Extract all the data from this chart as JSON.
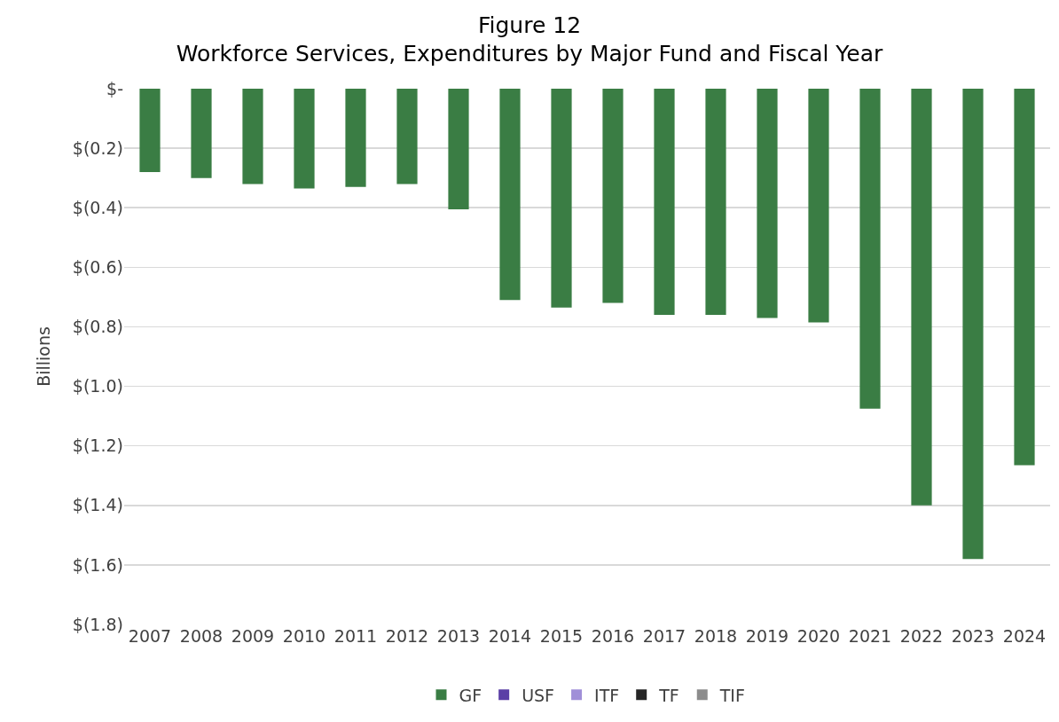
{
  "chart_data": {
    "type": "bar",
    "title": "Figure 12",
    "subtitle": "Workforce Services, Expenditures by Major Fund and Fiscal Year",
    "ylabel": "Billions",
    "categories": [
      "2007",
      "2008",
      "2009",
      "2010",
      "2011",
      "2012",
      "2013",
      "2014",
      "2015",
      "2016",
      "2017",
      "2018",
      "2019",
      "2020",
      "2021",
      "2022",
      "2023",
      "2024"
    ],
    "series": [
      {
        "name": "GF",
        "color": "#3a7d44",
        "values": [
          -0.28,
          -0.3,
          -0.32,
          -0.335,
          -0.33,
          -0.32,
          -0.405,
          -0.71,
          -0.735,
          -0.72,
          -0.76,
          -0.76,
          -0.77,
          -0.785,
          -1.075,
          -1.4,
          -1.58,
          -1.265
        ]
      },
      {
        "name": "USF",
        "color": "#5b3fa6",
        "values": [
          null,
          null,
          null,
          null,
          null,
          null,
          null,
          null,
          null,
          null,
          null,
          null,
          null,
          null,
          null,
          null,
          null,
          null
        ]
      },
      {
        "name": "ITF",
        "color": "#a08fd8",
        "values": [
          null,
          null,
          null,
          null,
          null,
          null,
          null,
          null,
          null,
          null,
          null,
          null,
          null,
          null,
          null,
          null,
          null,
          null
        ]
      },
      {
        "name": "TF",
        "color": "#262626",
        "values": [
          null,
          null,
          null,
          null,
          null,
          null,
          null,
          null,
          null,
          null,
          null,
          null,
          null,
          null,
          null,
          null,
          null,
          null
        ]
      },
      {
        "name": "TIF",
        "color": "#8c8c8c",
        "values": [
          null,
          null,
          null,
          null,
          null,
          null,
          null,
          null,
          null,
          null,
          null,
          null,
          null,
          null,
          null,
          null,
          null,
          null
        ]
      }
    ],
    "stacked": true,
    "ylim": [
      -1.8,
      0
    ],
    "yticks": [
      {
        "value": 0,
        "label": "$-"
      },
      {
        "value": -0.2,
        "label": "$(0.2)"
      },
      {
        "value": -0.4,
        "label": "$(0.4)"
      },
      {
        "value": -0.6,
        "label": "$(0.6)"
      },
      {
        "value": -0.8,
        "label": "$(0.8)"
      },
      {
        "value": -1.0,
        "label": "$(1.0)"
      },
      {
        "value": -1.2,
        "label": "$(1.2)"
      },
      {
        "value": -1.4,
        "label": "$(1.4)"
      },
      {
        "value": -1.6,
        "label": "$(1.6)"
      },
      {
        "value": -1.8,
        "label": "$(1.8)"
      }
    ],
    "grid": "y",
    "legend": "bottom"
  }
}
